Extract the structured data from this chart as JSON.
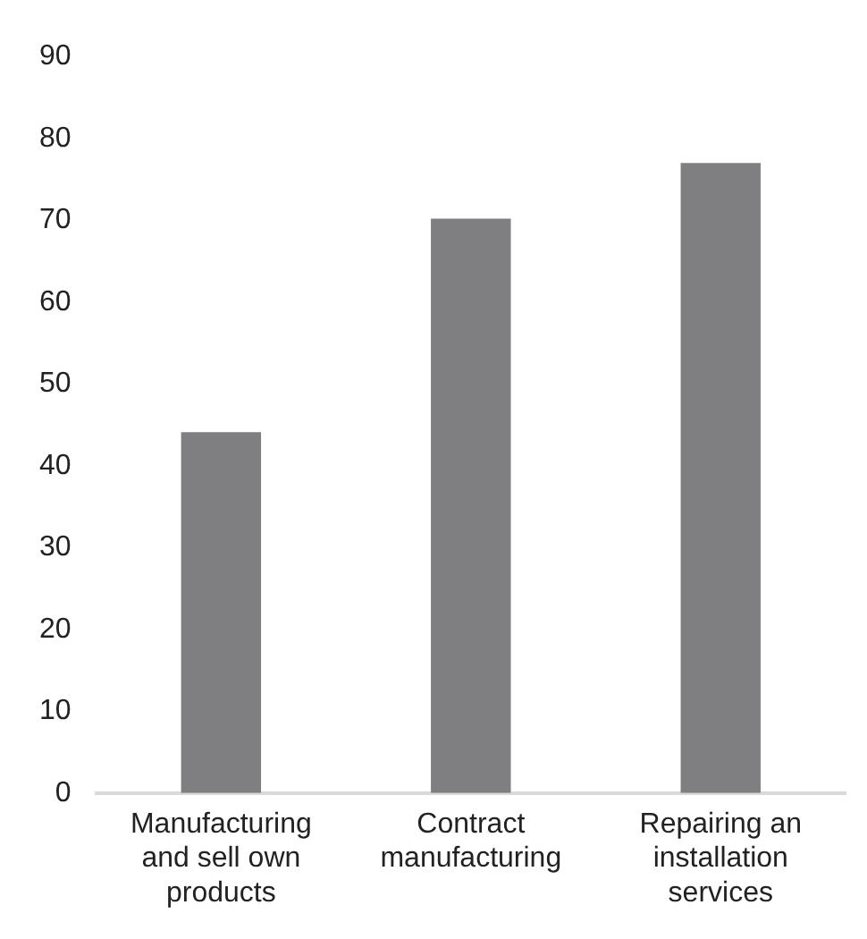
{
  "chart_data": {
    "type": "bar",
    "categories": [
      "Manufacturing and sell own products",
      "Contract manufacturing",
      "Repairing an installation services"
    ],
    "values": [
      44.1,
      70.2,
      77.0
    ],
    "color": "#7f7f82",
    "ylim": [
      0,
      90
    ],
    "yticks": [
      0,
      10,
      20,
      30,
      40,
      50,
      60,
      70,
      80,
      90
    ],
    "grid": false
  }
}
